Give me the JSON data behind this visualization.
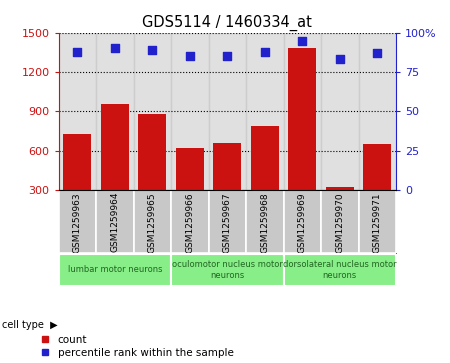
{
  "title": "GDS5114 / 1460334_at",
  "samples": [
    "GSM1259963",
    "GSM1259964",
    "GSM1259965",
    "GSM1259966",
    "GSM1259967",
    "GSM1259968",
    "GSM1259969",
    "GSM1259970",
    "GSM1259971"
  ],
  "counts": [
    730,
    960,
    880,
    620,
    660,
    790,
    1380,
    320,
    655
  ],
  "percentiles": [
    88,
    90,
    89,
    85,
    85,
    88,
    95,
    83,
    87
  ],
  "ylim_left": [
    300,
    1500
  ],
  "ylim_right": [
    0,
    100
  ],
  "yticks_left": [
    300,
    600,
    900,
    1200,
    1500
  ],
  "yticks_right": [
    0,
    25,
    50,
    75,
    100
  ],
  "bar_color": "#cc1111",
  "dot_color": "#2222cc",
  "cell_types": [
    {
      "label": "lumbar motor neurons",
      "start": 0,
      "end": 3
    },
    {
      "label": "oculomotor nucleus motor\nneurons",
      "start": 3,
      "end": 6
    },
    {
      "label": "dorsolateral nucleus motor\nneurons",
      "start": 6,
      "end": 9
    }
  ],
  "cell_type_bg": "#88ee88",
  "sample_bg": "#c8c8c8",
  "legend_entries": [
    "count",
    "percentile rank within the sample"
  ],
  "ylabel_left_color": "#cc1111",
  "ylabel_right_color": "#2222cc",
  "grid_color": "black",
  "bg_color": "white"
}
